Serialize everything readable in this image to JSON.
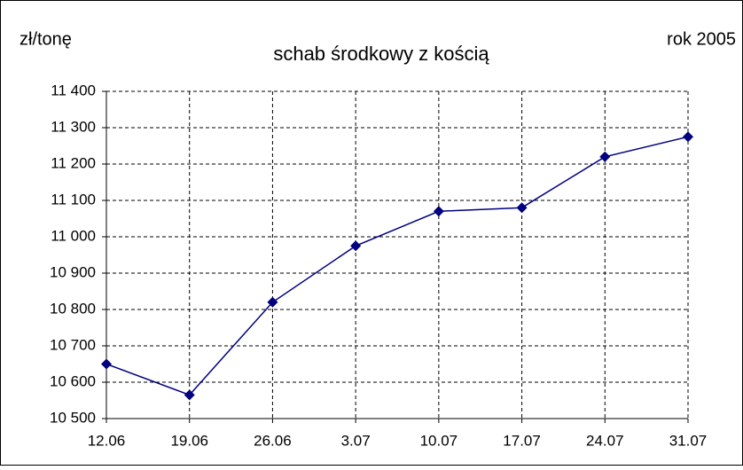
{
  "chart_data": {
    "type": "line",
    "title": "schab środkowy z kością",
    "y_label": "zł/tonę",
    "annotation": "rok 2005",
    "categories": [
      "12.06",
      "19.06",
      "26.06",
      "3.07",
      "10.07",
      "17.07",
      "24.07",
      "31.07"
    ],
    "series": [
      {
        "color": "#000080",
        "values": [
          10650,
          10565,
          10820,
          10975,
          11070,
          11080,
          11220,
          11275
        ]
      }
    ],
    "ylim": [
      10500,
      11400
    ],
    "yticks": [
      {
        "value": 10500,
        "label": "10 500"
      },
      {
        "value": 10600,
        "label": "10 600"
      },
      {
        "value": 10700,
        "label": "10 700"
      },
      {
        "value": 10800,
        "label": "10 800"
      },
      {
        "value": 10900,
        "label": "10 900"
      },
      {
        "value": 11000,
        "label": "11 000"
      },
      {
        "value": 11100,
        "label": "11 100"
      },
      {
        "value": 11200,
        "label": "11 200"
      },
      {
        "value": 11300,
        "label": "11 300"
      },
      {
        "value": 11400,
        "label": "11 400"
      }
    ],
    "grid": true,
    "marker": "diamond"
  }
}
